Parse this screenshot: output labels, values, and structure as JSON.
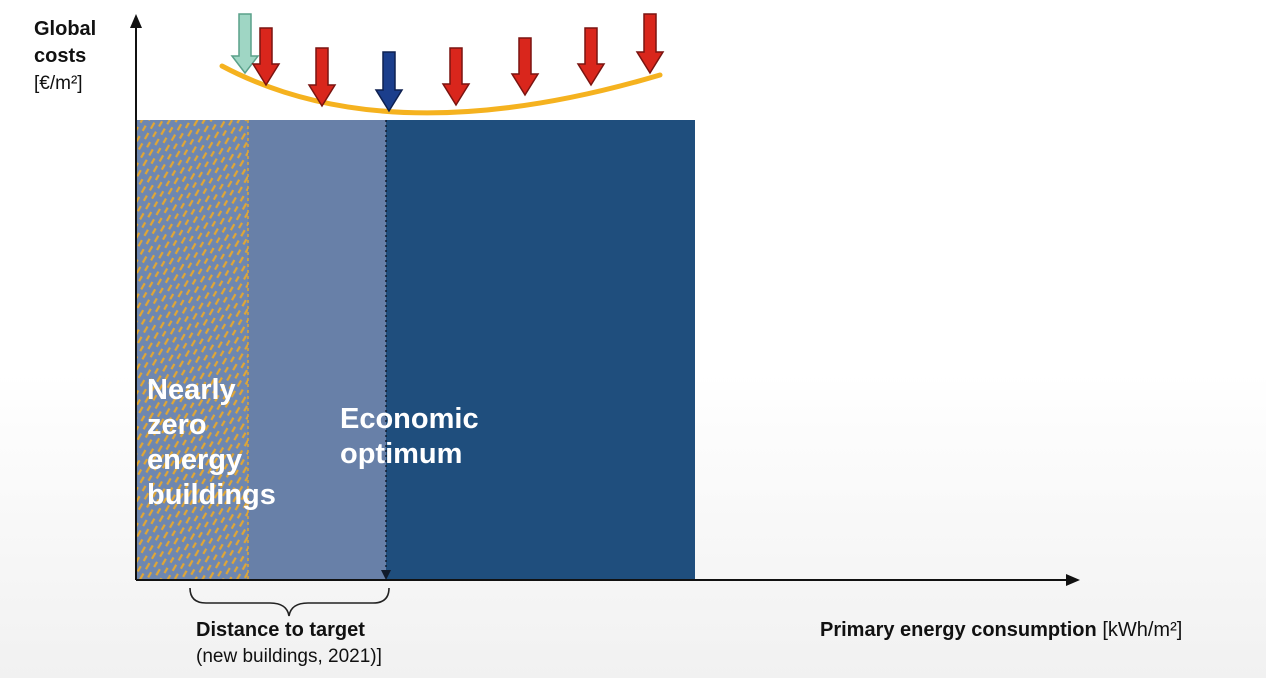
{
  "y_axis": {
    "title_line1": "Global",
    "title_line2": "costs",
    "unit": "[€/m²]"
  },
  "x_axis": {
    "title": "Primary energy consumption",
    "unit": "[kWh/m²]"
  },
  "regions": {
    "nzeb": {
      "label_lines": [
        "Nearly",
        "zero",
        "energy",
        "buildings"
      ],
      "color": "#6e87b0",
      "hatch_color": "#e0a635"
    },
    "distance": {
      "color": "#6880a8"
    },
    "optimum": {
      "label_lines": [
        "Economic",
        "optimum"
      ],
      "color": "#1f4e7d"
    }
  },
  "curve": {
    "color": "#f5b21f"
  },
  "arrows": {
    "red_color": "#d9261c",
    "blue_color": "#1b3e8c",
    "green_color": "#9fd6c4"
  },
  "brace_label": {
    "line1": "Distance to target",
    "line2": "(new buildings, 2021)]"
  }
}
